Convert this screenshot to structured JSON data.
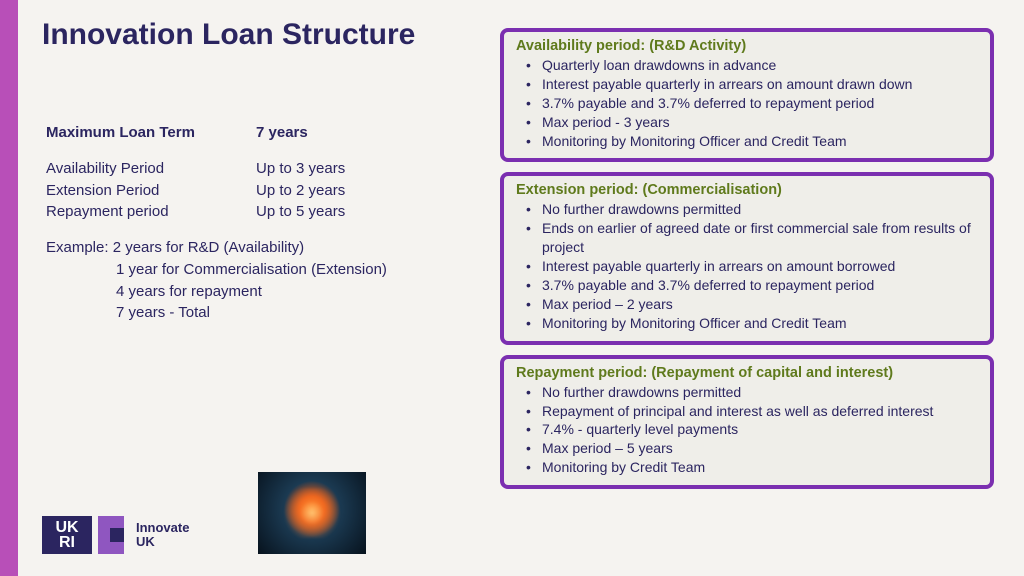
{
  "title": "Innovation Loan Structure",
  "left": {
    "rows": [
      {
        "label": "Maximum Loan Term",
        "value": "7 years",
        "bold": true
      },
      {
        "gap": true
      },
      {
        "label": "Availability Period",
        "value": "Up to 3 years"
      },
      {
        "label": "Extension Period",
        "value": "Up to 2 years"
      },
      {
        "label": "Repayment period",
        "value": "Up to 5 years"
      }
    ],
    "example_lead": "Example: 2 years for R&D (Availability)",
    "example_lines": [
      "1 year for Commercialisation (Extension)",
      "4 years for repayment",
      "7 years - Total"
    ]
  },
  "cards": [
    {
      "title": "Availability period: (R&D Activity)",
      "items": [
        "Quarterly loan drawdowns in advance",
        "Interest payable quarterly in arrears on amount drawn down",
        "3.7% payable and 3.7% deferred to repayment period",
        "Max period - 3 years",
        "Monitoring by Monitoring Officer and Credit Team"
      ]
    },
    {
      "title": "Extension period: (Commercialisation)",
      "items": [
        "No further drawdowns permitted",
        "Ends on earlier of agreed date or first commercial sale from results of project",
        "Interest payable quarterly in arrears on amount borrowed",
        "3.7% payable and 3.7% deferred to repayment period",
        "Max period – 2 years",
        "Monitoring by Monitoring Officer and Credit Team"
      ]
    },
    {
      "title": "Repayment period: (Repayment of capital and interest)",
      "items": [
        "No further drawdowns permitted",
        "Repayment of principal and interest as well as deferred interest",
        "7.4% - quarterly level payments",
        "Max period – 5 years",
        "Monitoring by Credit Team"
      ]
    }
  ],
  "logo": {
    "badge": "UK\nRI",
    "text1": "Innovate",
    "text2": "UK"
  },
  "colors": {
    "stripe": "#b84fb8",
    "border": "#7b2fb0",
    "text": "#2b2560",
    "card_title": "#5f7a1c",
    "bg": "#f5f3f0"
  }
}
